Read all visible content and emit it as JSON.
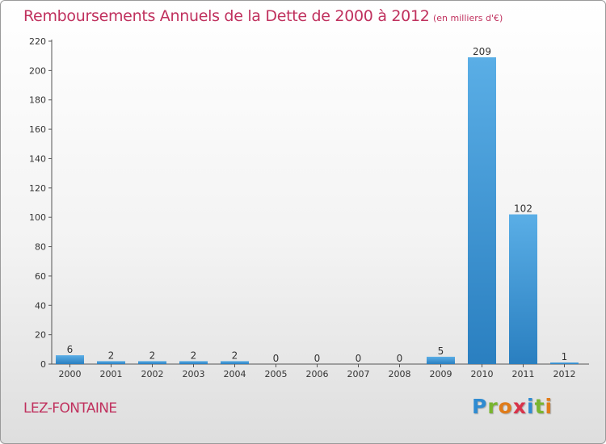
{
  "title": "Remboursements Annuels de la Dette de 2000 à 2012",
  "unit_note": "(en milliers d'€)",
  "location": "LEZ-FONTAINE",
  "logo": {
    "letters": [
      "P",
      "r",
      "o",
      "x",
      "i",
      "t",
      "i"
    ],
    "text": "Proxiti"
  },
  "colors": {
    "title": "#c0315e",
    "bar_top": "#5aaee6",
    "bar_bottom": "#2a7fc0",
    "logo_letters": [
      "#2f8bd1",
      "#79b530",
      "#e07c1a",
      "#d8334a",
      "#2f8bd1",
      "#79b530",
      "#e07c1a"
    ]
  },
  "chart_data": {
    "type": "bar",
    "categories": [
      "2000",
      "2001",
      "2002",
      "2003",
      "2004",
      "2005",
      "2006",
      "2007",
      "2008",
      "2009",
      "2010",
      "2011",
      "2012"
    ],
    "values": [
      6,
      2,
      2,
      2,
      2,
      0,
      0,
      0,
      0,
      5,
      209,
      102,
      1
    ],
    "title": "Remboursements Annuels de la Dette de 2000 à 2012",
    "xlabel": "",
    "ylabel": "",
    "ylim": [
      0,
      220
    ],
    "yticks": [
      0,
      20,
      40,
      60,
      80,
      100,
      120,
      140,
      160,
      180,
      200,
      220
    ],
    "grid": false,
    "legend": "none"
  }
}
